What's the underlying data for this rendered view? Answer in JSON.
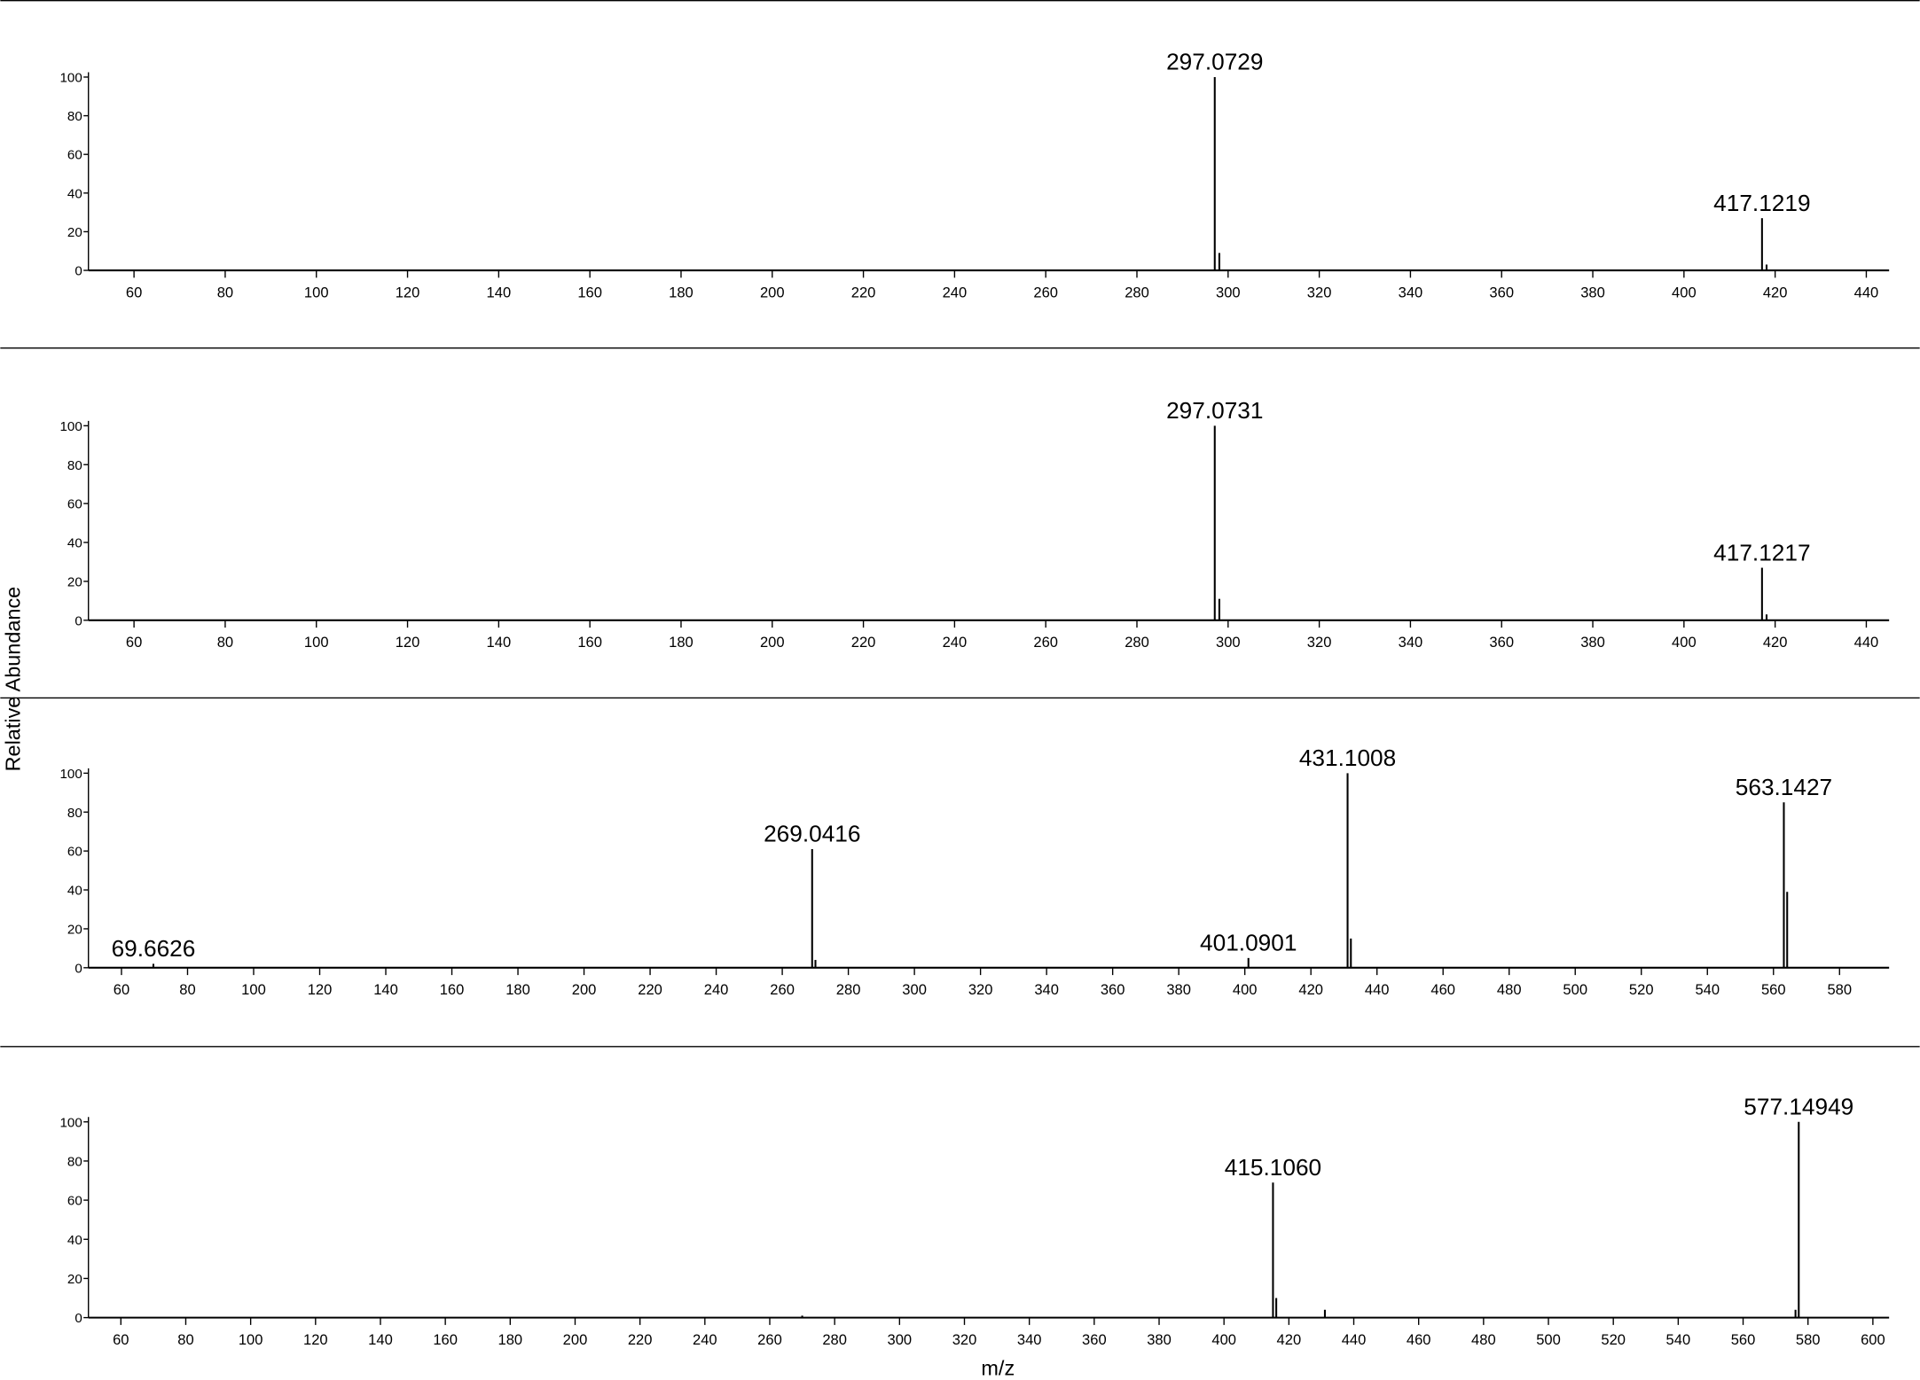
{
  "ylabel": "Relative Abundance",
  "xlabel": "m/z",
  "chart_data": [
    {
      "type": "stem",
      "color": "#000000",
      "x": [
        297.0729,
        298.08,
        417.1219,
        418.12
      ],
      "x_labels": [
        "297.0729",
        null,
        "417.1219",
        null
      ],
      "values": [
        100,
        9,
        27,
        3
      ],
      "xlim": [
        50,
        445
      ],
      "xticks": [
        60,
        80,
        100,
        120,
        140,
        160,
        180,
        200,
        220,
        240,
        260,
        280,
        300,
        320,
        340,
        360,
        380,
        400,
        420,
        440
      ],
      "ylim": [
        0,
        100
      ],
      "yticks": [
        0,
        20,
        40,
        60,
        80,
        100
      ]
    },
    {
      "type": "stem",
      "color": "#000000",
      "x": [
        297.0731,
        298.08,
        417.1217,
        418.12
      ],
      "x_labels": [
        "297.0731",
        null,
        "417.1217",
        null
      ],
      "values": [
        100,
        11,
        27,
        3
      ],
      "xlim": [
        50,
        445
      ],
      "xticks": [
        60,
        80,
        100,
        120,
        140,
        160,
        180,
        200,
        220,
        240,
        260,
        280,
        300,
        320,
        340,
        360,
        380,
        400,
        420,
        440
      ],
      "ylim": [
        0,
        100
      ],
      "yticks": [
        0,
        20,
        40,
        60,
        80,
        100
      ]
    },
    {
      "type": "stem",
      "color": "#000000",
      "x": [
        69.6626,
        269.0416,
        270.04,
        401.0901,
        431.1008,
        432.1,
        563.1427,
        564.15
      ],
      "x_labels": [
        "69.6626",
        "269.0416",
        null,
        "401.0901",
        "431.1008",
        null,
        "563.1427",
        null
      ],
      "values": [
        2,
        61,
        4,
        5,
        100,
        15,
        85,
        39
      ],
      "xlim": [
        50,
        595
      ],
      "xticks": [
        60,
        80,
        100,
        120,
        140,
        160,
        180,
        200,
        220,
        240,
        260,
        280,
        300,
        320,
        340,
        360,
        380,
        400,
        420,
        440,
        460,
        480,
        500,
        520,
        540,
        560,
        580
      ],
      "ylim": [
        0,
        100
      ],
      "yticks": [
        0,
        20,
        40,
        60,
        80,
        100
      ]
    },
    {
      "type": "stem",
      "color": "#000000",
      "x": [
        270,
        415.106,
        416.11,
        431.1,
        576.15,
        577.14949
      ],
      "x_labels": [
        null,
        "415.1060",
        null,
        null,
        null,
        "577.14949"
      ],
      "values": [
        1,
        69,
        10,
        4,
        4,
        100
      ],
      "xlim": [
        50,
        605
      ],
      "xticks": [
        60,
        80,
        100,
        120,
        140,
        160,
        180,
        200,
        220,
        240,
        260,
        280,
        300,
        320,
        340,
        360,
        380,
        400,
        420,
        440,
        460,
        480,
        500,
        520,
        540,
        560,
        580,
        600
      ],
      "ylim": [
        0,
        100
      ],
      "yticks": [
        0,
        20,
        40,
        60,
        80,
        100
      ]
    }
  ]
}
